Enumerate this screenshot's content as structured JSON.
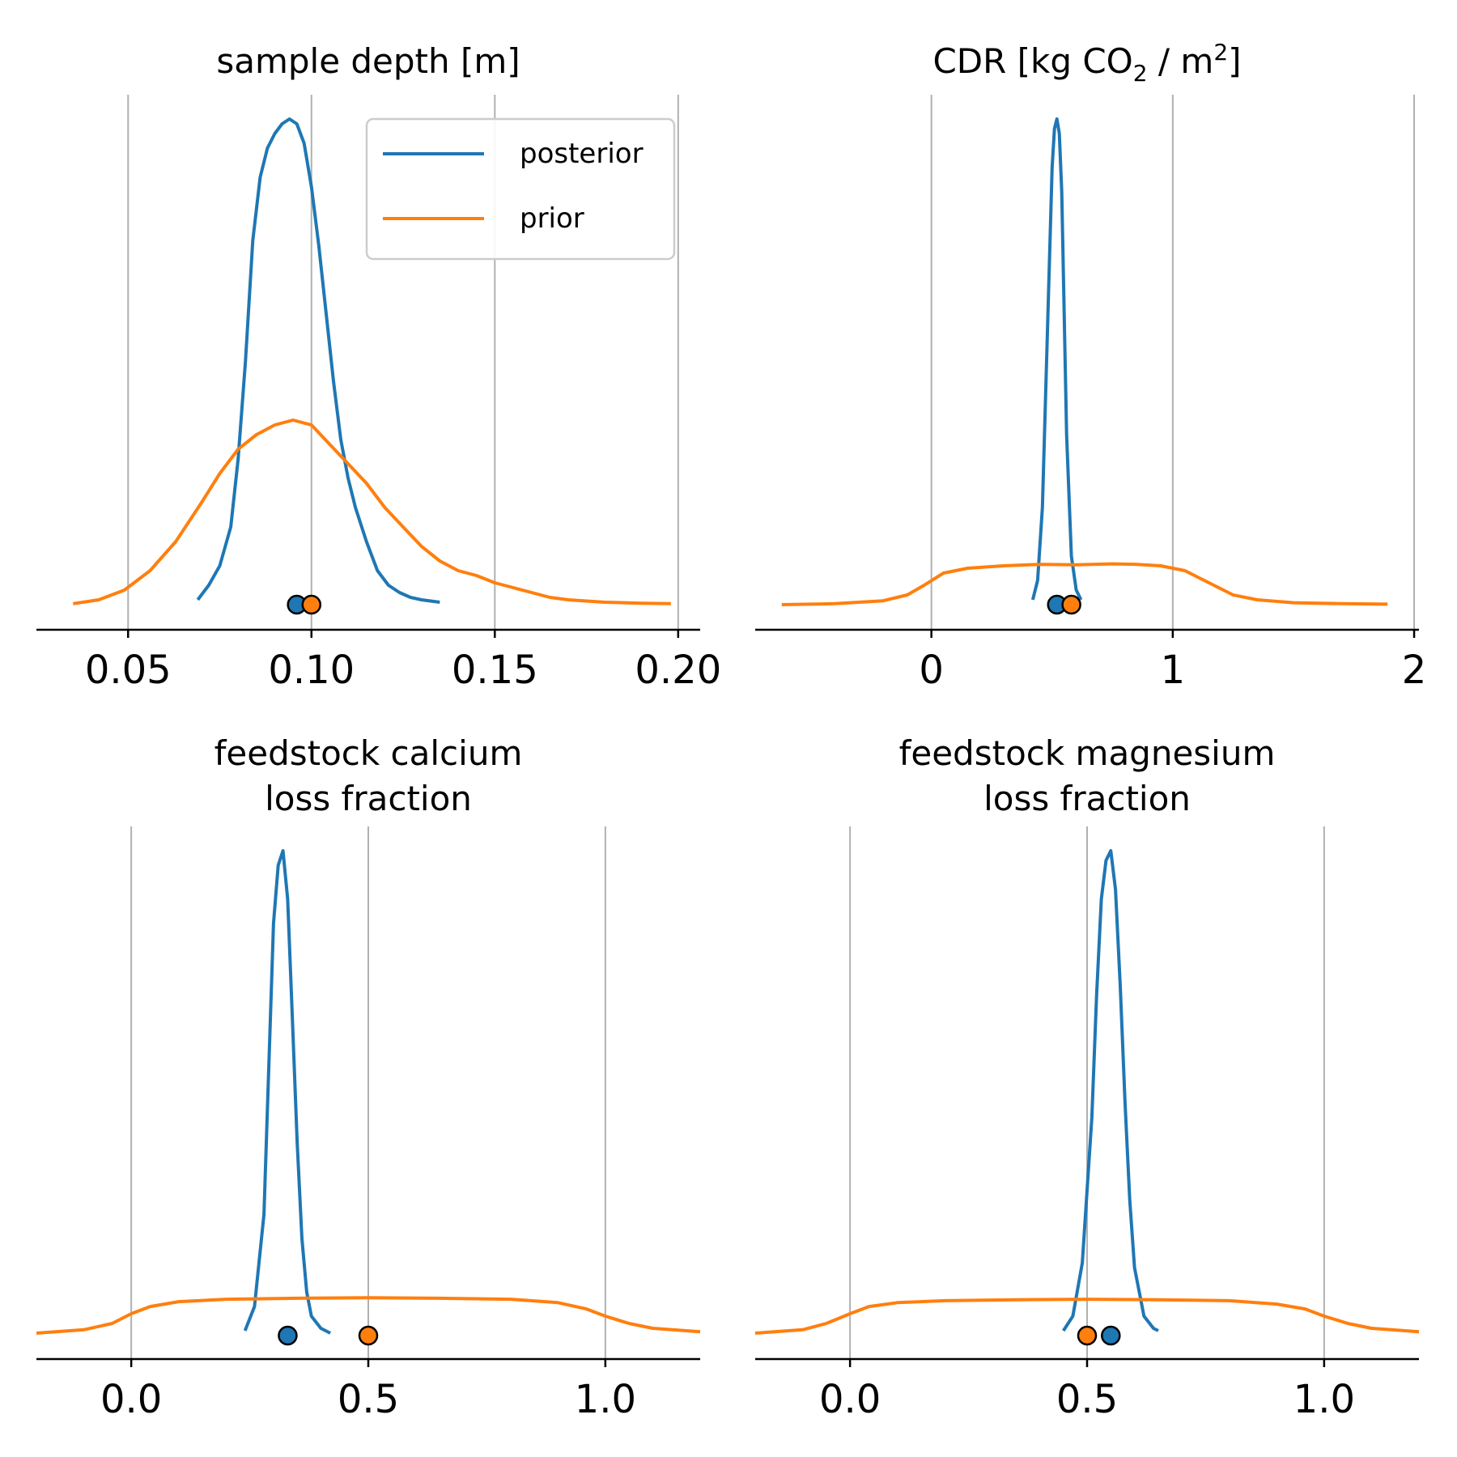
{
  "chart_data": [
    {
      "type": "line",
      "subtype": "density",
      "title": "sample depth [m]",
      "xlim": [
        0.025,
        0.206
      ],
      "xticks": [
        0.05,
        0.1,
        0.15,
        0.2
      ],
      "xtick_labels": [
        "0.05",
        "0.10",
        "0.15",
        "0.20"
      ],
      "ymax": 1.0,
      "grid": "x",
      "legend": {
        "placement": "top-right",
        "entries": [
          "posterior",
          "prior"
        ]
      },
      "series": [
        {
          "name": "posterior",
          "color": "#1f77b4",
          "x": [
            0.069,
            0.072,
            0.075,
            0.078,
            0.08,
            0.082,
            0.084,
            0.086,
            0.088,
            0.09,
            0.092,
            0.094,
            0.096,
            0.098,
            0.1,
            0.102,
            0.104,
            0.106,
            0.108,
            0.11,
            0.112,
            0.115,
            0.118,
            0.121,
            0.124,
            0.127,
            0.13,
            0.135
          ],
          "y": [
            0.01,
            0.04,
            0.08,
            0.16,
            0.3,
            0.5,
            0.75,
            0.88,
            0.94,
            0.97,
            0.99,
            1.0,
            0.99,
            0.95,
            0.86,
            0.74,
            0.6,
            0.46,
            0.34,
            0.26,
            0.2,
            0.13,
            0.07,
            0.04,
            0.025,
            0.015,
            0.01,
            0.005
          ]
        },
        {
          "name": "prior",
          "color": "#ff7f0e",
          "x": [
            0.035,
            0.042,
            0.049,
            0.056,
            0.063,
            0.07,
            0.075,
            0.08,
            0.085,
            0.09,
            0.095,
            0.1,
            0.105,
            0.11,
            0.115,
            0.12,
            0.125,
            0.13,
            0.135,
            0.14,
            0.145,
            0.15,
            0.155,
            0.16,
            0.165,
            0.17,
            0.18,
            0.19,
            0.198
          ],
          "y": [
            0.002,
            0.01,
            0.03,
            0.07,
            0.13,
            0.21,
            0.27,
            0.32,
            0.35,
            0.37,
            0.38,
            0.37,
            0.33,
            0.29,
            0.25,
            0.2,
            0.16,
            0.12,
            0.09,
            0.07,
            0.06,
            0.045,
            0.035,
            0.025,
            0.015,
            0.01,
            0.005,
            0.003,
            0.002
          ]
        }
      ],
      "markers": [
        {
          "name": "posterior",
          "color": "#1f77b4",
          "x": 0.096
        },
        {
          "name": "prior",
          "color": "#ff7f0e",
          "x": 0.1
        }
      ]
    },
    {
      "type": "line",
      "subtype": "density",
      "title": "CDR [kg CO",
      "title_sub": "2",
      "title_mid": " / m",
      "title_sup": "2",
      "title_end": "]",
      "xlim": [
        -0.73,
        2.02
      ],
      "xticks": [
        0,
        1,
        2
      ],
      "xtick_labels": [
        "0",
        "1",
        "2"
      ],
      "ymax": 1.0,
      "grid": "x",
      "series": [
        {
          "name": "posterior",
          "color": "#1f77b4",
          "x": [
            0.42,
            0.44,
            0.46,
            0.48,
            0.5,
            0.51,
            0.52,
            0.53,
            0.54,
            0.55,
            0.56,
            0.58,
            0.6,
            0.62
          ],
          "y": [
            0.01,
            0.05,
            0.2,
            0.55,
            0.9,
            0.98,
            1.0,
            0.97,
            0.85,
            0.6,
            0.35,
            0.1,
            0.03,
            0.01
          ]
        },
        {
          "name": "prior",
          "color": "#ff7f0e",
          "x": [
            -0.62,
            -0.4,
            -0.2,
            -0.1,
            -0.03,
            0.05,
            0.15,
            0.3,
            0.45,
            0.6,
            0.75,
            0.85,
            0.95,
            1.05,
            1.15,
            1.25,
            1.35,
            1.5,
            1.7,
            1.89
          ],
          "y": [
            0.0,
            0.002,
            0.008,
            0.02,
            0.04,
            0.065,
            0.075,
            0.08,
            0.083,
            0.082,
            0.084,
            0.083,
            0.08,
            0.07,
            0.045,
            0.02,
            0.01,
            0.004,
            0.002,
            0.001
          ]
        }
      ],
      "markers": [
        {
          "name": "posterior",
          "color": "#1f77b4",
          "x": 0.52
        },
        {
          "name": "prior",
          "color": "#ff7f0e",
          "x": 0.58
        }
      ]
    },
    {
      "type": "line",
      "subtype": "density",
      "title": "feedstock calcium",
      "title_line2": "loss fraction",
      "xlim": [
        -0.2,
        1.2
      ],
      "xticks": [
        0.0,
        0.5,
        1.0
      ],
      "xtick_labels": [
        "0.0",
        "0.5",
        "1.0"
      ],
      "ymax": 1.0,
      "grid": "x",
      "series": [
        {
          "name": "posterior",
          "color": "#1f77b4",
          "x": [
            0.24,
            0.26,
            0.28,
            0.29,
            0.3,
            0.31,
            0.32,
            0.33,
            0.34,
            0.35,
            0.36,
            0.37,
            0.38,
            0.4,
            0.42
          ],
          "y": [
            0.01,
            0.06,
            0.25,
            0.55,
            0.85,
            0.97,
            1.0,
            0.9,
            0.65,
            0.4,
            0.2,
            0.09,
            0.04,
            0.015,
            0.005
          ]
        },
        {
          "name": "prior",
          "color": "#ff7f0e",
          "x": [
            -0.2,
            -0.1,
            -0.04,
            0.0,
            0.04,
            0.1,
            0.2,
            0.35,
            0.5,
            0.65,
            0.8,
            0.9,
            0.96,
            1.0,
            1.05,
            1.1,
            1.2
          ],
          "y": [
            0.005,
            0.012,
            0.025,
            0.045,
            0.06,
            0.07,
            0.075,
            0.077,
            0.078,
            0.077,
            0.075,
            0.068,
            0.055,
            0.04,
            0.025,
            0.015,
            0.008
          ]
        }
      ],
      "markers": [
        {
          "name": "posterior",
          "color": "#1f77b4",
          "x": 0.33
        },
        {
          "name": "prior",
          "color": "#ff7f0e",
          "x": 0.5
        }
      ]
    },
    {
      "type": "line",
      "subtype": "density",
      "title": "feedstock magnesium",
      "title_line2": "loss fraction",
      "xlim": [
        -0.2,
        1.2
      ],
      "xticks": [
        0.0,
        0.5,
        1.0
      ],
      "xtick_labels": [
        "0.0",
        "0.5",
        "1.0"
      ],
      "ymax": 1.0,
      "grid": "x",
      "series": [
        {
          "name": "posterior",
          "color": "#1f77b4",
          "x": [
            0.45,
            0.47,
            0.49,
            0.51,
            0.52,
            0.53,
            0.54,
            0.55,
            0.56,
            0.57,
            0.58,
            0.59,
            0.6,
            0.62,
            0.64,
            0.65
          ],
          "y": [
            0.01,
            0.04,
            0.15,
            0.45,
            0.7,
            0.9,
            0.98,
            1.0,
            0.92,
            0.72,
            0.48,
            0.28,
            0.14,
            0.04,
            0.015,
            0.01
          ]
        },
        {
          "name": "prior",
          "color": "#ff7f0e",
          "x": [
            -0.2,
            -0.1,
            -0.05,
            0.0,
            0.04,
            0.1,
            0.2,
            0.35,
            0.5,
            0.65,
            0.8,
            0.9,
            0.96,
            1.0,
            1.05,
            1.1,
            1.2
          ],
          "y": [
            0.005,
            0.012,
            0.025,
            0.045,
            0.06,
            0.068,
            0.072,
            0.074,
            0.075,
            0.074,
            0.072,
            0.065,
            0.055,
            0.04,
            0.025,
            0.015,
            0.008
          ]
        }
      ],
      "markers": [
        {
          "name": "prior",
          "color": "#ff7f0e",
          "x": 0.5
        },
        {
          "name": "posterior",
          "color": "#1f77b4",
          "x": 0.55
        }
      ]
    }
  ]
}
